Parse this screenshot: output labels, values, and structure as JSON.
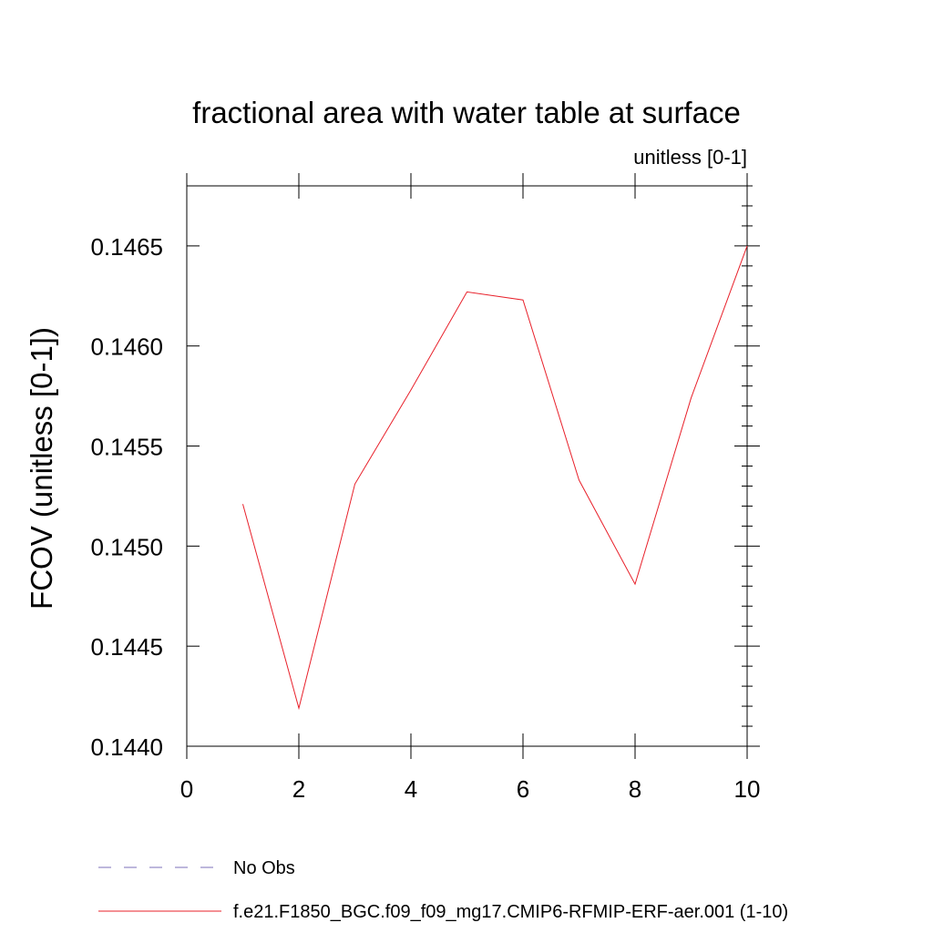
{
  "chart_data": {
    "type": "line",
    "title": "fractional area with water table at surface",
    "subtitle": "unitless [0-1]",
    "xlabel": "",
    "ylabel": "FCOV  (unitless [0-1])",
    "xlim": [
      0,
      10
    ],
    "ylim": [
      0.144,
      0.1468
    ],
    "x_ticks": [
      0,
      2,
      4,
      6,
      8,
      10
    ],
    "x_tick_labels": [
      "0",
      "2",
      "4",
      "6",
      "8",
      "10"
    ],
    "y_ticks": [
      0.144,
      0.1445,
      0.145,
      0.1455,
      0.146,
      0.1465
    ],
    "y_tick_labels": [
      "0.1440",
      "0.1445",
      "0.1450",
      "0.1455",
      "0.1460",
      "0.1465"
    ],
    "grid": false,
    "legend_position": "bottom",
    "series": [
      {
        "name": "f.e21.F1850_BGC.f09_f09_mg17.CMIP6-RFMIP-ERF-aer.001 (1-10)",
        "color": "#e8202a",
        "style": "solid",
        "x": [
          1,
          2,
          3,
          4,
          5,
          6,
          7,
          8,
          9,
          10
        ],
        "values": [
          0.14521,
          0.14419,
          0.14531,
          0.14578,
          0.14627,
          0.14623,
          0.14533,
          0.14481,
          0.14574,
          0.1465
        ]
      }
    ],
    "legend": [
      {
        "label": "No Obs",
        "color": "#7b6fb8",
        "style": "dashed"
      },
      {
        "label": "f.e21.F1850_BGC.f09_f09_mg17.CMIP6-RFMIP-ERF-aer.001 (1-10)",
        "color": "#e8202a",
        "style": "solid"
      }
    ]
  }
}
